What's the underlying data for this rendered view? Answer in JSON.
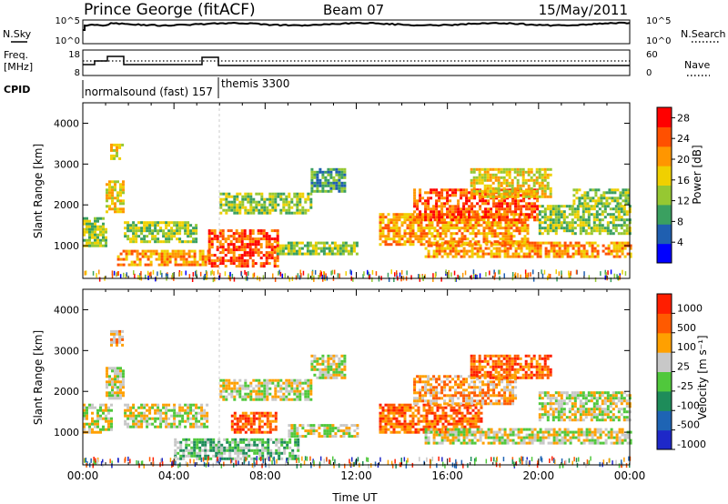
{
  "header": {
    "station": "Prince George (fitACF)",
    "beam": "Beam 07",
    "date": "15/May/2011"
  },
  "top_panels": {
    "nsky_label": "N.Sky",
    "nsearch_label": "N.Search",
    "freq_label_1": "Freq.",
    "freq_label_2": "[MHz]",
    "nave_label": "Nave",
    "cpid_label": "CPID",
    "noise_left_ticks": [
      "10^5",
      "10^0"
    ],
    "noise_right_ticks": [
      "10^5",
      "10^0"
    ],
    "freq_left_ticks": [
      "18",
      "8"
    ],
    "freq_right_ticks": [
      "60",
      "0"
    ],
    "cpid_text_1": "normalsound (fast) 157",
    "cpid_text_2": "themis 3300"
  },
  "colors": {
    "power_scale": [
      "#0000ff",
      "#1f5fb0",
      "#3aa060",
      "#96c832",
      "#f0d000",
      "#ff9600",
      "#ff5000",
      "#ff0000"
    ],
    "velocity_scale": [
      "#1e28c8",
      "#1e64b4",
      "#1e8c5a",
      "#50c83c",
      "#c8c8c8",
      "#ffa000",
      "#ff5a00",
      "#ff1e00"
    ]
  },
  "chart_data": [
    {
      "type": "heatmap",
      "title": "",
      "xlabel": "",
      "ylabel": "Slant Range [km]",
      "x_ticks": [
        "00:00",
        "04:00",
        "08:00",
        "12:00",
        "16:00",
        "20:00",
        "00:00"
      ],
      "x_range_hours": [
        0,
        24
      ],
      "y_range_km": [
        200,
        4500
      ],
      "y_ticks": [
        1000,
        2000,
        3000,
        4000
      ],
      "colorbar": {
        "label": "Power [dB]",
        "ticks": [
          4,
          8,
          12,
          16,
          20,
          24,
          28
        ],
        "range": [
          0,
          30
        ]
      },
      "bands": [
        {
          "t0": 0.0,
          "t1": 1.0,
          "r0": 1000,
          "r1": 1700,
          "level": 3
        },
        {
          "t0": 1.0,
          "t1": 1.8,
          "r0": 1800,
          "r1": 2600,
          "level": 4
        },
        {
          "t0": 1.2,
          "t1": 1.7,
          "r0": 3100,
          "r1": 3500,
          "level": 4
        },
        {
          "t0": 1.8,
          "t1": 5.0,
          "r0": 1100,
          "r1": 1600,
          "level": 3
        },
        {
          "t0": 1.5,
          "t1": 5.5,
          "r0": 500,
          "r1": 900,
          "level": 5
        },
        {
          "t0": 5.5,
          "t1": 8.5,
          "r0": 500,
          "r1": 1400,
          "level": 6
        },
        {
          "t0": 6.0,
          "t1": 10.0,
          "r0": 1800,
          "r1": 2300,
          "level": 3
        },
        {
          "t0": 8.5,
          "t1": 12.0,
          "r0": 800,
          "r1": 1100,
          "level": 3
        },
        {
          "t0": 10.0,
          "t1": 11.5,
          "r0": 2300,
          "r1": 2900,
          "level": 2
        },
        {
          "t0": 13.0,
          "t1": 19.5,
          "r0": 1000,
          "r1": 1800,
          "level": 5
        },
        {
          "t0": 14.5,
          "t1": 20.0,
          "r0": 1600,
          "r1": 2400,
          "level": 6
        },
        {
          "t0": 17.0,
          "t1": 20.5,
          "r0": 2200,
          "r1": 2900,
          "level": 4
        },
        {
          "t0": 15.0,
          "t1": 24.0,
          "r0": 700,
          "r1": 1100,
          "level": 5
        },
        {
          "t0": 20.0,
          "t1": 24.0,
          "r0": 1300,
          "r1": 2000,
          "level": 3
        },
        {
          "t0": 21.5,
          "t1": 24.0,
          "r0": 2000,
          "r1": 2400,
          "level": 3
        }
      ]
    },
    {
      "type": "heatmap",
      "title": "",
      "xlabel": "Time UT",
      "ylabel": "Slant Range [km]",
      "x_ticks": [
        "00:00",
        "04:00",
        "08:00",
        "12:00",
        "16:00",
        "20:00",
        "00:00"
      ],
      "x_range_hours": [
        0,
        24
      ],
      "y_range_km": [
        200,
        4500
      ],
      "y_ticks": [
        1000,
        2000,
        3000,
        4000
      ],
      "colorbar": {
        "label": "Velocity [m s⁻¹]",
        "ticks": [
          "1000",
          "500",
          "100",
          "25",
          "-25",
          "-100",
          "-500",
          "-1000"
        ]
      },
      "bands": [
        {
          "t0": 0.0,
          "t1": 1.2,
          "r0": 1000,
          "r1": 1700,
          "level": 4
        },
        {
          "t0": 1.0,
          "t1": 1.8,
          "r0": 1800,
          "r1": 2600,
          "level": 4
        },
        {
          "t0": 1.2,
          "t1": 1.7,
          "r0": 3100,
          "r1": 3500,
          "level": 5
        },
        {
          "t0": 1.8,
          "t1": 5.5,
          "r0": 1100,
          "r1": 1700,
          "level": 4
        },
        {
          "t0": 4.0,
          "t1": 9.5,
          "r0": 350,
          "r1": 850,
          "level": 3
        },
        {
          "t0": 6.5,
          "t1": 8.5,
          "r0": 1000,
          "r1": 1500,
          "level": 6
        },
        {
          "t0": 6.0,
          "t1": 10.0,
          "r0": 1800,
          "r1": 2300,
          "level": 4
        },
        {
          "t0": 9.0,
          "t1": 12.0,
          "r0": 900,
          "r1": 1200,
          "level": 4
        },
        {
          "t0": 10.0,
          "t1": 11.5,
          "r0": 2300,
          "r1": 2900,
          "level": 4
        },
        {
          "t0": 13.0,
          "t1": 17.5,
          "r0": 1000,
          "r1": 1700,
          "level": 6
        },
        {
          "t0": 14.5,
          "t1": 19.0,
          "r0": 1700,
          "r1": 2400,
          "level": 5
        },
        {
          "t0": 17.0,
          "t1": 20.5,
          "r0": 2300,
          "r1": 2900,
          "level": 6
        },
        {
          "t0": 15.0,
          "t1": 24.0,
          "r0": 700,
          "r1": 1100,
          "level": 4
        },
        {
          "t0": 20.0,
          "t1": 24.0,
          "r0": 1300,
          "r1": 2000,
          "level": 4
        }
      ]
    }
  ]
}
